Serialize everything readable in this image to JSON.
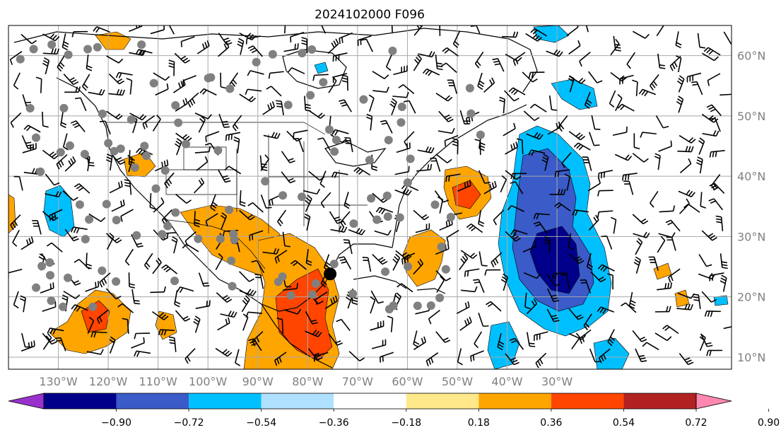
{
  "title": "2024102000 F096",
  "map": {
    "lon_range": [
      -140,
      5
    ],
    "lat_range": [
      8,
      65
    ],
    "lon_ticks": [
      {
        "value": -130,
        "label": "130°W"
      },
      {
        "value": -120,
        "label": "120°W"
      },
      {
        "value": -110,
        "label": "110°W"
      },
      {
        "value": -100,
        "label": "100°W"
      },
      {
        "value": -90,
        "label": "90°W"
      },
      {
        "value": -80,
        "label": "80°W"
      },
      {
        "value": -70,
        "label": "70°W"
      },
      {
        "value": -60,
        "label": "60°W"
      },
      {
        "value": -50,
        "label": "50°W"
      },
      {
        "value": -40,
        "label": "40°W"
      },
      {
        "value": -30,
        "label": "30°W"
      }
    ],
    "lat_ticks": [
      {
        "value": 60,
        "label": "60°N"
      },
      {
        "value": 50,
        "label": "50°N"
      },
      {
        "value": 40,
        "label": "40°N"
      },
      {
        "value": 30,
        "label": "30°N"
      },
      {
        "value": 20,
        "label": "20°N"
      },
      {
        "value": 10,
        "label": "10°N"
      }
    ],
    "grid": true,
    "storm_marker": {
      "lon": -75.5,
      "lat": 23.8
    }
  },
  "colorbar": {
    "colors": [
      "#9932cc",
      "#00008b",
      "#3a5bc8",
      "#00bfff",
      "#b0e0ff",
      "#ffffff",
      "#ffe88a",
      "#ffa500",
      "#ff4500",
      "#b22222",
      "#ff88b0"
    ],
    "labels": [
      "−0.90",
      "−0.72",
      "−0.54",
      "−0.36",
      "−0.18",
      "0.18",
      "0.36",
      "0.54",
      "0.72",
      "0.90"
    ]
  }
}
